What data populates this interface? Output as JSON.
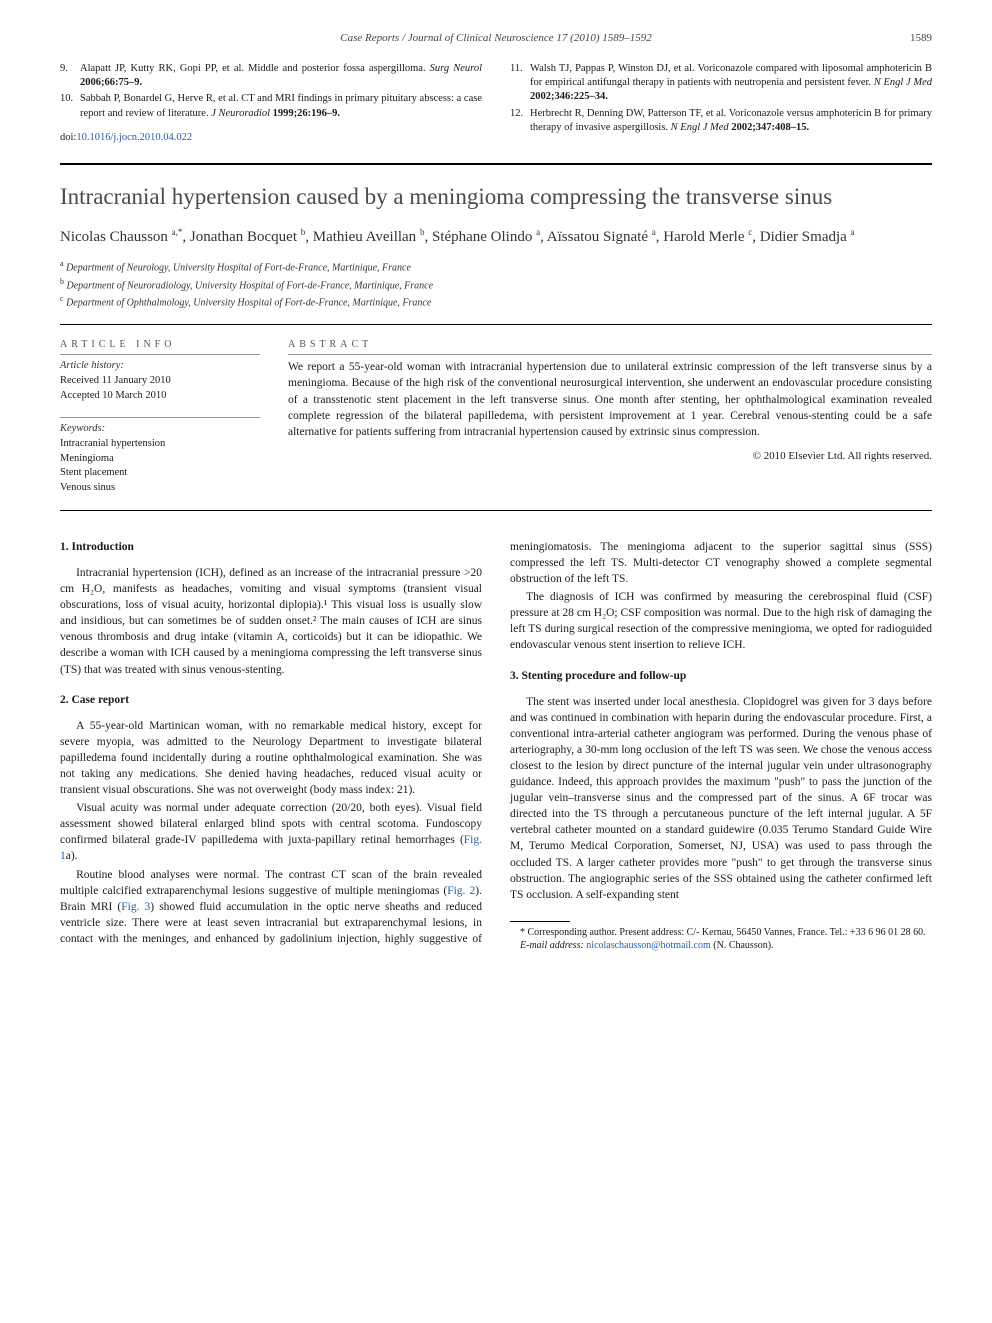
{
  "running_head": {
    "text": "Case Reports / Journal of Clinical Neuroscience 17 (2010) 1589–1592",
    "page": "1589"
  },
  "top_references": {
    "left": [
      {
        "num": "9.",
        "text": "Alapatt JP, Kutty RK, Gopi PP, et al. Middle and posterior fossa aspergilloma. ",
        "journal": "Surg Neurol",
        "cite": " 2006;66:75–9."
      },
      {
        "num": "10.",
        "text": "Sabbah P, Bonardel G, Herve R, et al. CT and MRI findings in primary pituitary abscess: a case report and review of literature. ",
        "journal": "J Neuroradiol",
        "cite": " 1999;26:196–9."
      }
    ],
    "right": [
      {
        "num": "11.",
        "text": "Walsh TJ, Pappas P, Winston DJ, et al. Voriconazole compared with liposomal amphotericin B for empirical antifungal therapy in patients with neutropenia and persistent fever. ",
        "journal": "N Engl J Med",
        "cite": " 2002;346:225–34."
      },
      {
        "num": "12.",
        "text": "Herbrecht R, Denning DW, Patterson TF, et al. Voriconazole versus amphotericin B for primary therapy of invasive aspergillosis. ",
        "journal": "N Engl J Med",
        "cite": " 2002;347:408–15."
      }
    ]
  },
  "doi": {
    "label": "doi:",
    "value": "10.1016/j.jocn.2010.04.022"
  },
  "title": "Intracranial hypertension caused by a meningioma compressing the transverse sinus",
  "authors_html": "Nicolas Chausson <sup>a,*</sup>, Jonathan Bocquet <sup>b</sup>, Mathieu Aveillan <sup>b</sup>, Stéphane Olindo <sup>a</sup>, Aïssatou Signaté <sup>a</sup>, Harold Merle <sup>c</sup>, Didier Smadja <sup>a</sup>",
  "affiliations": [
    {
      "sup": "a",
      "text": "Department of Neurology, University Hospital of Fort-de-France, Martinique, France"
    },
    {
      "sup": "b",
      "text": "Department of Neuroradiology, University Hospital of Fort-de-France, Martinique, France"
    },
    {
      "sup": "c",
      "text": "Department of Ophthalmology, University Hospital of Fort-de-France, Martinique, France"
    }
  ],
  "article_info": {
    "heading": "ARTICLE INFO",
    "history_label": "Article history:",
    "received": "Received 11 January 2010",
    "accepted": "Accepted 10 March 2010",
    "keywords_label": "Keywords:",
    "keywords": [
      "Intracranial hypertension",
      "Meningioma",
      "Stent placement",
      "Venous sinus"
    ]
  },
  "abstract": {
    "heading": "ABSTRACT",
    "text": "We report a 55-year-old woman with intracranial hypertension due to unilateral extrinsic compression of the left transverse sinus by a meningioma. Because of the high risk of the conventional neurosurgical intervention, she underwent an endovascular procedure consisting of a transstenotic stent placement in the left transverse sinus. One month after stenting, her ophthalmological examination revealed complete regression of the bilateral papilledema, with persistent improvement at 1 year. Cerebral venous-stenting could be a safe alternative for patients suffering from intracranial hypertension caused by extrinsic sinus compression.",
    "copyright": "© 2010 Elsevier Ltd. All rights reserved."
  },
  "sections": {
    "s1": {
      "heading": "1. Introduction",
      "p1": "Intracranial hypertension (ICH), defined as an increase of the intracranial pressure >20 cm H₂O, manifests as headaches, vomiting and visual symptoms (transient visual obscurations, loss of visual acuity, horizontal diplopia).¹ This visual loss is usually slow and insidious, but can sometimes be of sudden onset.² The main causes of ICH are sinus venous thrombosis and drug intake (vitamin A, corticoids) but it can be idiopathic. We describe a woman with ICH caused by a meningioma compressing the left transverse sinus (TS) that was treated with sinus venous-stenting."
    },
    "s2": {
      "heading": "2. Case report",
      "p1": "A 55-year-old Martinican woman, with no remarkable medical history, except for severe myopia, was admitted to the Neurology Department to investigate bilateral papilledema found incidentally during a routine ophthalmological examination. She was not taking any medications. She denied having headaches, reduced visual acuity or transient visual obscurations. She was not overweight (body mass index: 21).",
      "p2": "Visual acuity was normal under adequate correction (20/20, both eyes). Visual field assessment showed bilateral enlarged blind spots with central scotoma. Fundoscopy confirmed bilateral grade-IV papilledema with juxta-papillary retinal hemorrhages (",
      "p2_link": "Fig. 1",
      "p2_tail": "a).",
      "p3a": "Routine blood analyses were normal. The contrast CT scan of the brain revealed multiple calcified extraparenchymal lesions suggestive of multiple meningiomas (",
      "p3_link1": "Fig. 2",
      "p3_mid": "). Brain MRI (",
      "p3_link2": "Fig. 3",
      "p3_tail": ") ",
      "p4": "showed fluid accumulation in the optic nerve sheaths and reduced ventricle size. There were at least seven intracranial but extraparenchymal lesions, in contact with the meninges, and enhanced by gadolinium injection, highly suggestive of meningiomatosis. The meningioma adjacent to the superior sagittal sinus (SSS) compressed the left TS. Multi-detector CT venography showed a complete segmental obstruction of the left TS.",
      "p5": "The diagnosis of ICH was confirmed by measuring the cerebrospinal fluid (CSF) pressure at 28 cm H₂O; CSF composition was normal. Due to the high risk of damaging the left TS during surgical resection of the compressive meningioma, we opted for radioguided endovascular venous stent insertion to relieve ICH."
    },
    "s3": {
      "heading": "3. Stenting procedure and follow-up",
      "p1": "The stent was inserted under local anesthesia. Clopidogrel was given for 3 days before and was continued in combination with heparin during the endovascular procedure. First, a conventional intra-arterial catheter angiogram was performed. During the venous phase of arteriography, a 30-mm long occlusion of the left TS was seen. We chose the venous access closest to the lesion by direct puncture of the internal jugular vein under ultrasonography guidance. Indeed, this approach provides the maximum \"push\" to pass the junction of the jugular vein–transverse sinus and the compressed part of the sinus. A 6F trocar was directed into the TS through a percutaneous puncture of the left internal jugular. A 5F vertebral catheter mounted on a standard guidewire (0.035 Terumo Standard Guide Wire M, Terumo Medical Corporation, Somerset, NJ, USA) was used to pass through the occluded TS. A larger catheter provides more \"push\" to get through the transverse sinus obstruction. The angiographic series of the SSS obtained using the catheter confirmed left TS occlusion. A self-expanding stent"
    }
  },
  "footnote": {
    "corr": "* Corresponding author. Present address: C/- Kernau, 56450 Vannes, France. Tel.: +33 6 96 01 28 60.",
    "email_label": "E-mail address:",
    "email": "nicolaschausson@hotmail.com",
    "email_tail": " (N. Chausson)."
  }
}
